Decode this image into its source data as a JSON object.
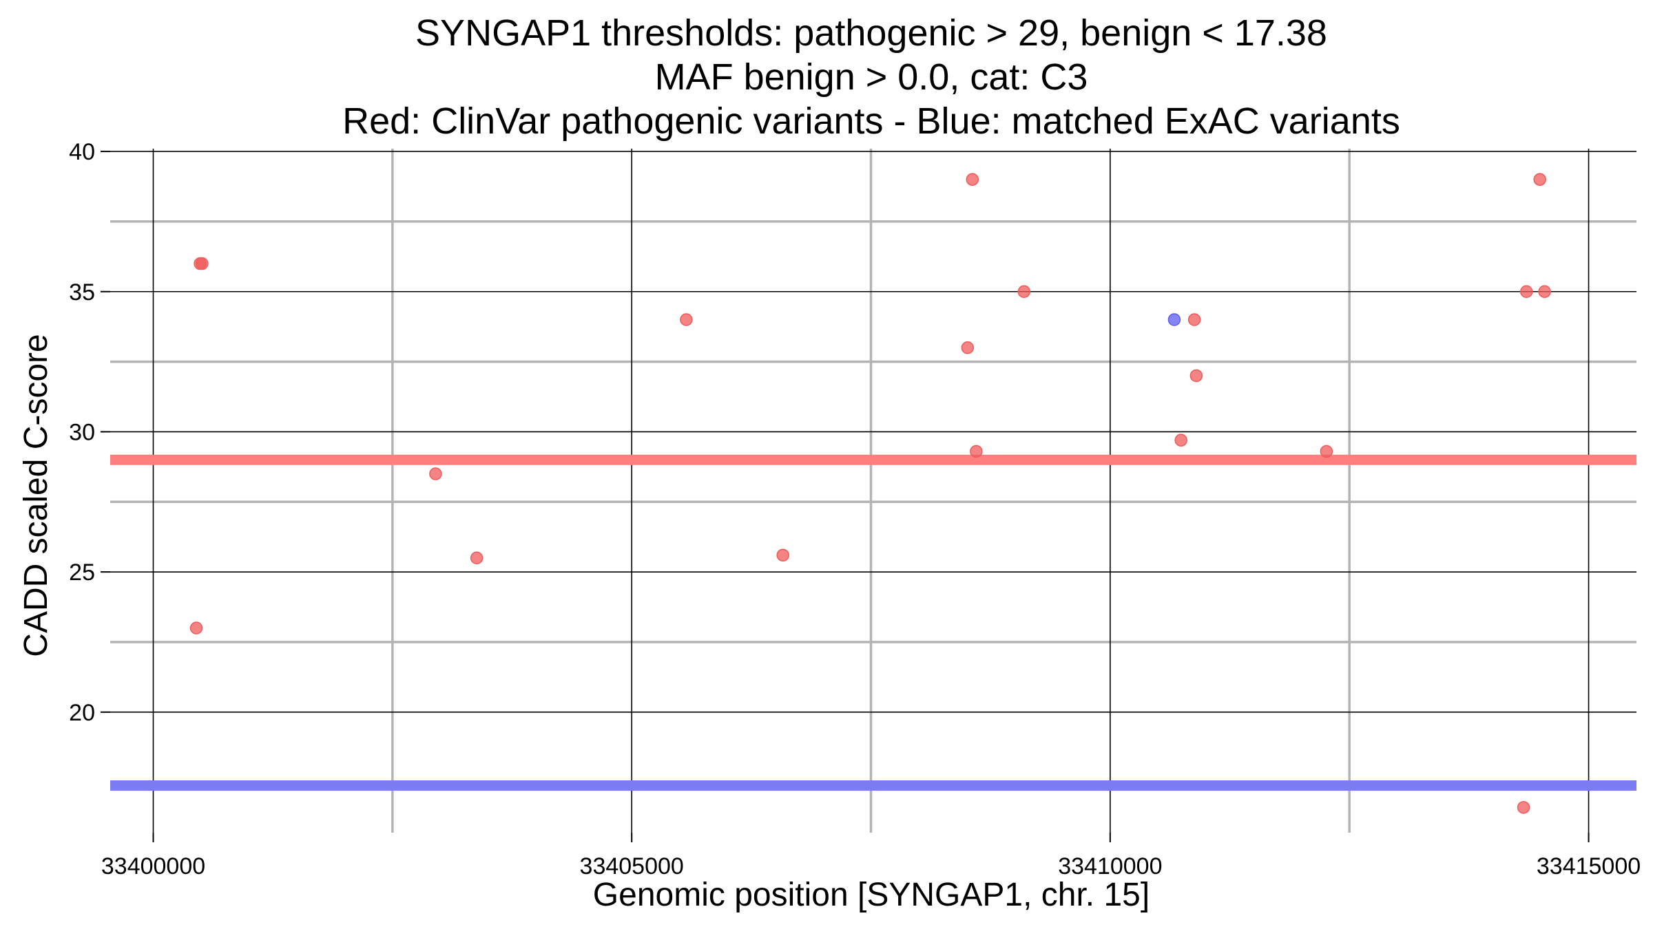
{
  "chart_data": {
    "type": "scatter",
    "title_lines": [
      "SYNGAP1 thresholds: pathogenic > 29, benign < 17.38",
      "MAF benign > 0.0, cat: C3",
      "Red: ClinVar pathogenic variants - Blue: matched ExAC variants"
    ],
    "xlabel": "Genomic position [SYNGAP1, chr. 15]",
    "ylabel": "CADD scaled C-score",
    "xlim": [
      33399550,
      33415500
    ],
    "ylim": [
      15.7,
      40.1
    ],
    "x_ticks": [
      {
        "value": 33400000,
        "label": "33400000"
      },
      {
        "value": 33405000,
        "label": "33405000"
      },
      {
        "value": 33410000,
        "label": "33410000"
      },
      {
        "value": 33415000,
        "label": "33415000"
      }
    ],
    "x_minor_ticks": [
      33402500,
      33407500,
      33412500
    ],
    "y_ticks": [
      {
        "value": 20,
        "label": "20"
      },
      {
        "value": 25,
        "label": "25"
      },
      {
        "value": 30,
        "label": "30"
      },
      {
        "value": 35,
        "label": "35"
      },
      {
        "value": 40,
        "label": "40"
      }
    ],
    "y_minor_ticks": [
      22.5,
      27.5,
      32.5,
      37.5
    ],
    "thresholds": [
      {
        "name": "pathogenic",
        "value": 29,
        "color": "#ff7f7f"
      },
      {
        "name": "benign",
        "value": 17.38,
        "color": "#7b7bf2"
      }
    ],
    "series": [
      {
        "name": "ClinVar pathogenic variants",
        "color": "#f05a5a",
        "points": [
          {
            "x": 33400450,
            "y": 23
          },
          {
            "x": 33400490,
            "y": 36
          },
          {
            "x": 33400510,
            "y": 36
          },
          {
            "x": 33402950,
            "y": 28.5
          },
          {
            "x": 33403380,
            "y": 25.5
          },
          {
            "x": 33405570,
            "y": 34
          },
          {
            "x": 33406580,
            "y": 25.6
          },
          {
            "x": 33408510,
            "y": 33
          },
          {
            "x": 33408560,
            "y": 39
          },
          {
            "x": 33408600,
            "y": 29.3
          },
          {
            "x": 33409100,
            "y": 35
          },
          {
            "x": 33410740,
            "y": 29.7
          },
          {
            "x": 33410880,
            "y": 34
          },
          {
            "x": 33410900,
            "y": 32
          },
          {
            "x": 33412260,
            "y": 29.3
          },
          {
            "x": 33414320,
            "y": 16.6
          },
          {
            "x": 33414350,
            "y": 35
          },
          {
            "x": 33414490,
            "y": 39
          },
          {
            "x": 33414540,
            "y": 35
          }
        ]
      },
      {
        "name": "matched ExAC variants",
        "color": "#5b5bf0",
        "points": [
          {
            "x": 33410670,
            "y": 34
          }
        ]
      }
    ]
  }
}
